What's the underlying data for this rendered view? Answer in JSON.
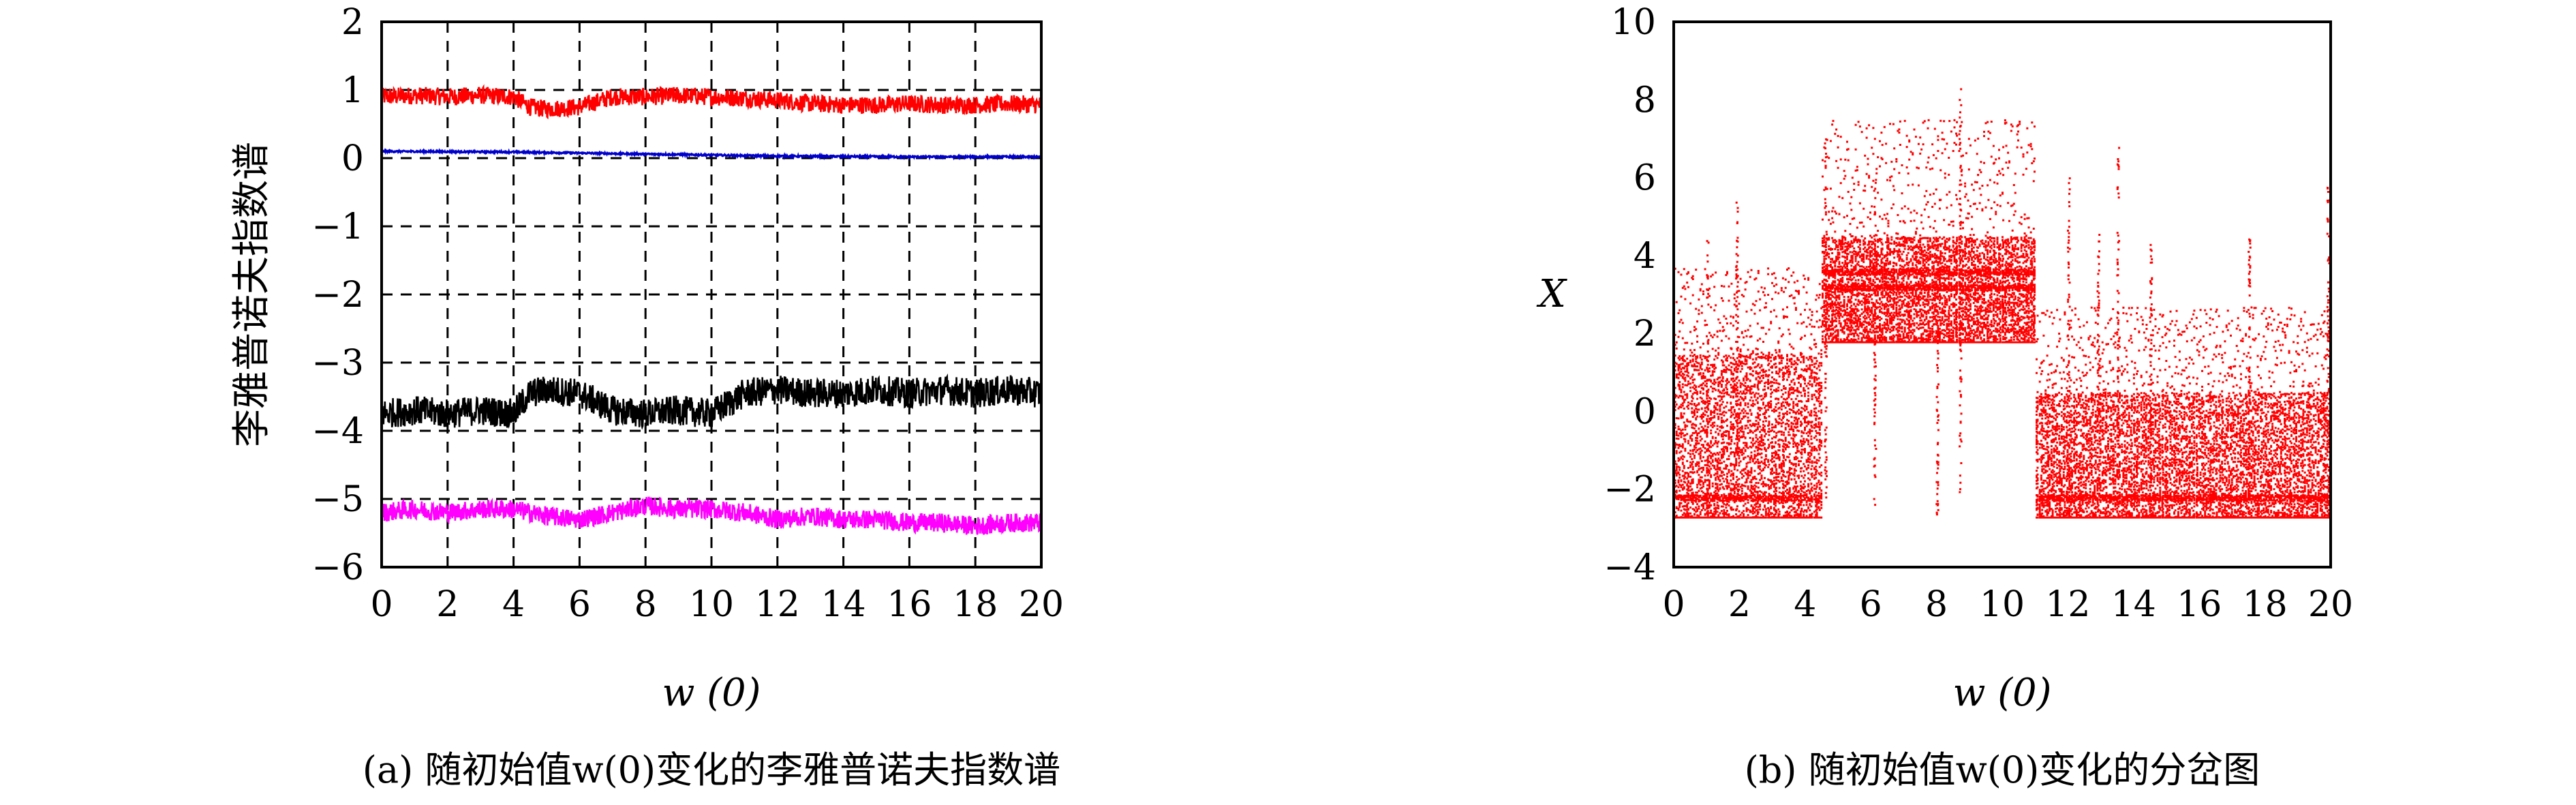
{
  "chart_data": [
    {
      "type": "line",
      "caption": "(a) 随初始值w(0)变化的李雅普诺夫指数谱",
      "xlabel": "w (0)",
      "ylabel": "李雅普诺夫指数谱",
      "xlim": [
        0,
        20
      ],
      "ylim": [
        -6,
        2
      ],
      "xticks": [
        "0",
        "2",
        "4",
        "6",
        "8",
        "10",
        "12",
        "14",
        "16",
        "18",
        "20"
      ],
      "yticks": [
        "2",
        "1",
        "0",
        "−1",
        "−2",
        "−3",
        "−4",
        "−5",
        "−6"
      ],
      "grid": true,
      "series": [
        {
          "color": "#ff0000",
          "x": [
            0,
            1,
            2,
            3,
            4,
            4.5,
            5,
            6,
            7,
            8,
            9,
            10,
            11,
            12,
            13,
            14,
            15,
            16,
            17,
            18,
            19,
            20
          ],
          "y": [
            0.9,
            0.92,
            0.9,
            0.92,
            0.9,
            0.75,
            0.72,
            0.75,
            0.9,
            0.9,
            0.92,
            0.9,
            0.88,
            0.85,
            0.8,
            0.78,
            0.78,
            0.8,
            0.78,
            0.78,
            0.8,
            0.78
          ]
        },
        {
          "color": "#0000cc",
          "x": [
            0,
            4,
            8,
            12,
            16,
            20
          ],
          "y": [
            0.1,
            0.09,
            0.06,
            0.03,
            0.02,
            0.02
          ]
        },
        {
          "color": "#000000",
          "x": [
            0,
            1,
            2,
            3,
            4,
            4.5,
            5,
            6,
            7,
            8,
            9,
            10,
            11,
            12,
            13,
            14,
            15,
            16,
            17,
            18,
            19,
            20
          ],
          "y": [
            -3.75,
            -3.7,
            -3.75,
            -3.7,
            -3.75,
            -3.45,
            -3.4,
            -3.45,
            -3.7,
            -3.75,
            -3.7,
            -3.75,
            -3.45,
            -3.4,
            -3.45,
            -3.45,
            -3.4,
            -3.45,
            -3.4,
            -3.45,
            -3.4,
            -3.45
          ]
        },
        {
          "color": "#ff00ff",
          "x": [
            0,
            1,
            2,
            3,
            4,
            5,
            6,
            7,
            8,
            9,
            10,
            11,
            12,
            13,
            14,
            15,
            16,
            17,
            18,
            19,
            20
          ],
          "y": [
            -5.2,
            -5.15,
            -5.2,
            -5.15,
            -5.15,
            -5.25,
            -5.3,
            -5.2,
            -5.1,
            -5.15,
            -5.15,
            -5.2,
            -5.3,
            -5.25,
            -5.3,
            -5.3,
            -5.35,
            -5.35,
            -5.4,
            -5.35,
            -5.35
          ]
        }
      ]
    },
    {
      "type": "scatter",
      "caption": "(b) 随初始值w(0)变化的分岔图",
      "xlabel": "w (0)",
      "ylabel": "X",
      "xlim": [
        0,
        20
      ],
      "ylim": [
        -4,
        10
      ],
      "xticks": [
        "0",
        "2",
        "4",
        "6",
        "8",
        "10",
        "12",
        "14",
        "16",
        "18",
        "20"
      ],
      "yticks": [
        "10",
        "8",
        "6",
        "4",
        "2",
        "0",
        "−2",
        "−4"
      ],
      "grid": false,
      "color": "#ff0000",
      "regions": [
        {
          "x": [
            0,
            4.5
          ],
          "y": [
            -2.7,
            1.5
          ],
          "bands": [
            -2.2
          ]
        },
        {
          "x": [
            4.5,
            11
          ],
          "y": [
            1.8,
            4.5
          ],
          "bands": [
            3.6,
            3.2
          ]
        },
        {
          "x": [
            11,
            20
          ],
          "y": [
            -2.7,
            0.5
          ],
          "bands": [
            -2.2
          ]
        }
      ],
      "spikes": [
        {
          "x": 1.0,
          "top": 4.5
        },
        {
          "x": 1.9,
          "top": 5.5
        },
        {
          "x": 4.6,
          "top": 7.2
        },
        {
          "x": 6.1,
          "top": 6.0
        },
        {
          "x": 8.0,
          "top": 4.5
        },
        {
          "x": 8.7,
          "top": 8.3
        },
        {
          "x": 12.0,
          "top": 6.2
        },
        {
          "x": 12.9,
          "top": 4.6
        },
        {
          "x": 13.5,
          "top": 6.8
        },
        {
          "x": 14.5,
          "top": 4.3
        },
        {
          "x": 17.5,
          "top": 4.5
        },
        {
          "x": 19.9,
          "top": 5.8
        }
      ]
    }
  ]
}
